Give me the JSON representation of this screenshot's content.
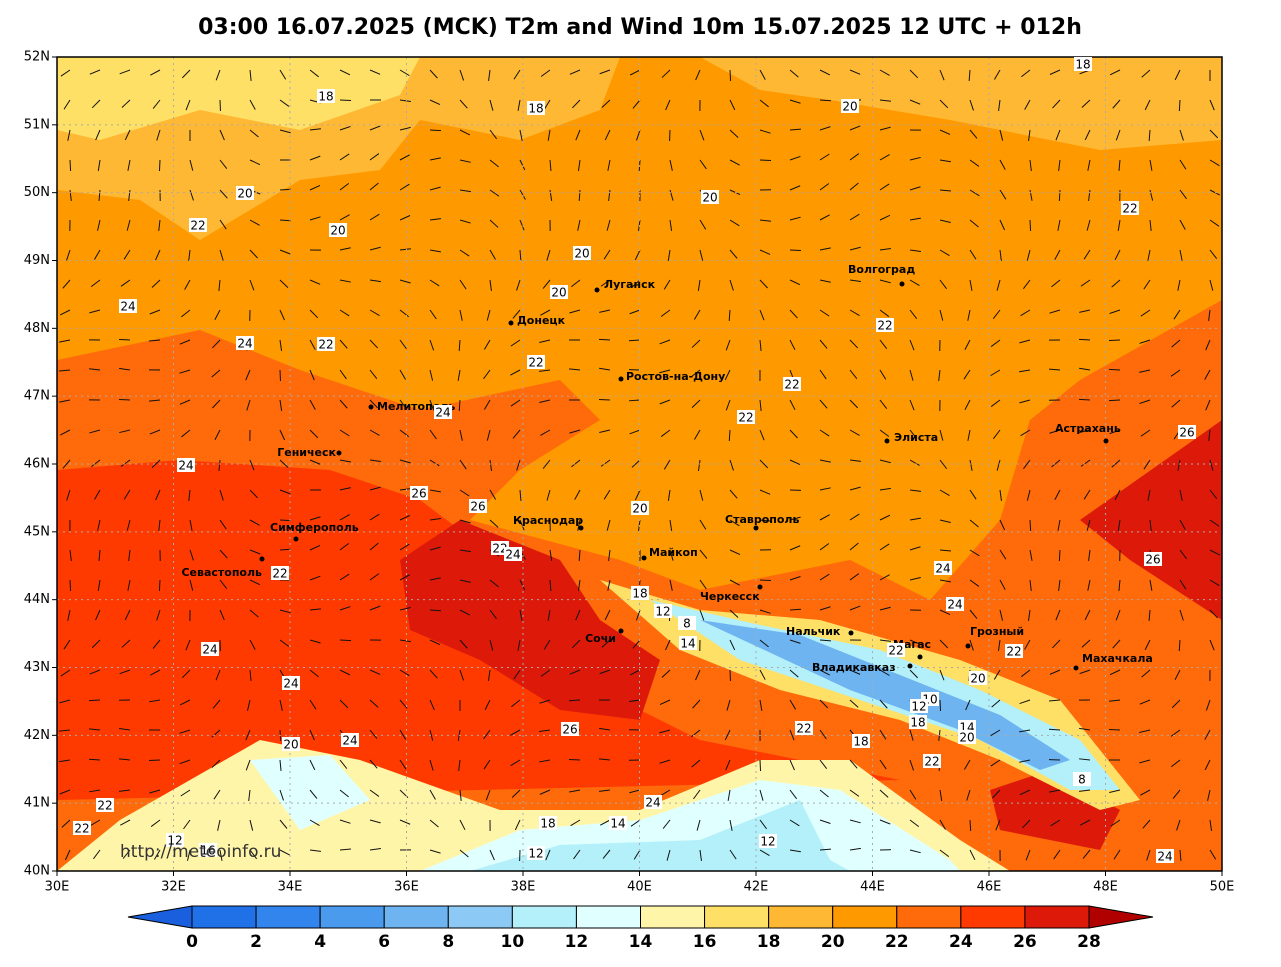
{
  "title": "03:00 16.07.2025 (MCK) T2m and Wind 10m 15.07.2025 12 UTC + 012h",
  "lat_ticks": [
    "52N",
    "51N",
    "50N",
    "49N",
    "48N",
    "47N",
    "46N",
    "45N",
    "44N",
    "43N",
    "42N",
    "41N",
    "40N"
  ],
  "lon_ticks": [
    "30E",
    "32E",
    "34E",
    "36E",
    "38E",
    "40E",
    "42E",
    "44E",
    "46E",
    "48E",
    "50E"
  ],
  "cities": [
    "Луганск",
    "Донецк",
    "Волгоград",
    "Ростов-на-Дону",
    "Мелитополь",
    "Элиста",
    "Астрахань",
    "Геническ",
    "Краснодар",
    "Ставрополь",
    "Симферополь",
    "Севастополь",
    "Майкоп",
    "Черкесск",
    "Сочи",
    "Нальчик",
    "Магас",
    "Грозный",
    "Владикавказ",
    "Махачкала"
  ],
  "contour_labels": [
    18,
    18,
    20,
    18,
    22,
    20,
    20,
    20,
    20,
    22,
    20,
    24,
    22,
    22,
    22,
    22,
    24,
    24,
    26,
    26,
    22,
    24,
    20,
    22,
    22,
    18,
    12,
    8,
    14,
    24,
    24,
    26,
    24,
    26,
    24,
    24,
    22,
    20,
    10,
    12,
    18,
    14,
    20,
    22,
    18,
    22,
    26,
    20,
    24,
    22,
    18,
    14,
    12,
    12,
    16,
    8,
    12,
    22,
    24,
    22,
    24
  ],
  "colorbar_levels": [
    0,
    2,
    4,
    6,
    8,
    10,
    12,
    14,
    16,
    18,
    20,
    22,
    24,
    26,
    28
  ],
  "watermark": "http://meteoinfo.ru"
}
